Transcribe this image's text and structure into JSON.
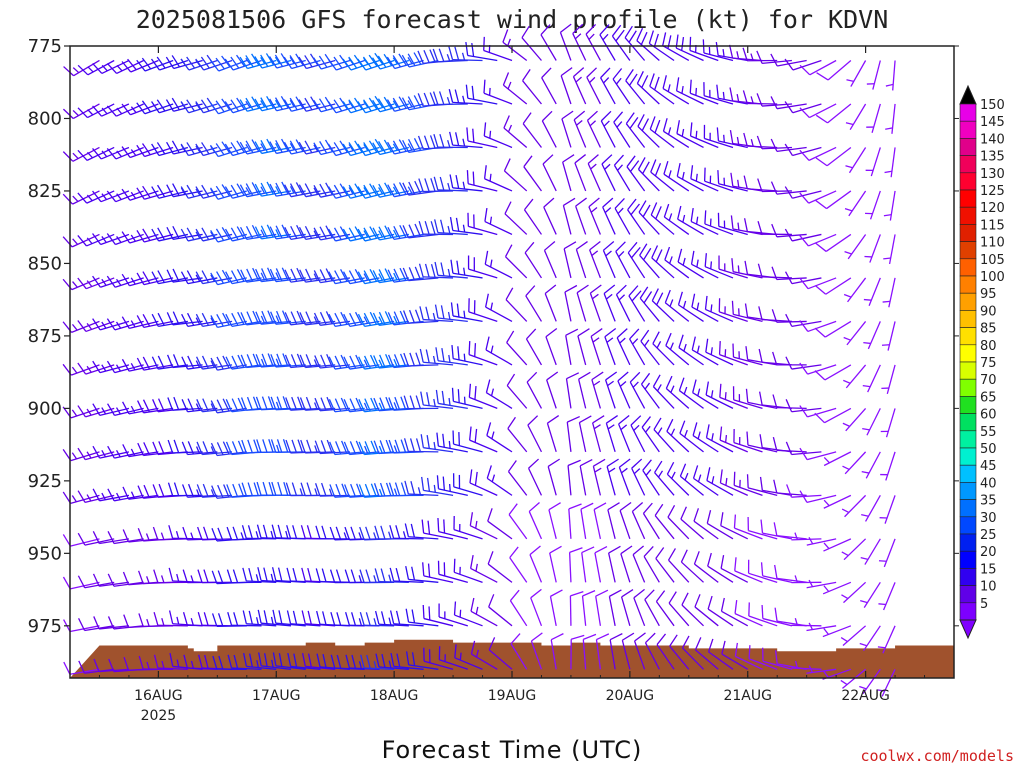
{
  "chart_data": {
    "type": "wind-profile",
    "title": "2025081506 GFS forecast wind profile (kt) for KDVN",
    "xlabel": "Forecast Time (UTC)",
    "ylabel": "",
    "credit": "coolwx.com/models",
    "y_axis": {
      "range": [
        775,
        993
      ],
      "ticks": [
        775,
        800,
        825,
        850,
        875,
        900,
        925,
        950,
        975
      ],
      "inverted": true
    },
    "x_axis": {
      "range": [
        "2025-08-15T06:00Z",
        "2025-08-22T18:00Z"
      ],
      "ticks": [
        {
          "date": "2025-08-16T00:00Z",
          "label": "16AUG",
          "sublabel": "2025"
        },
        {
          "date": "2025-08-17T00:00Z",
          "label": "17AUG",
          "sublabel": ""
        },
        {
          "date": "2025-08-18T00:00Z",
          "label": "18AUG",
          "sublabel": ""
        },
        {
          "date": "2025-08-19T00:00Z",
          "label": "19AUG",
          "sublabel": ""
        },
        {
          "date": "2025-08-20T00:00Z",
          "label": "20AUG",
          "sublabel": ""
        },
        {
          "date": "2025-08-21T00:00Z",
          "label": "21AUG",
          "sublabel": ""
        },
        {
          "date": "2025-08-22T00:00Z",
          "label": "22AUG",
          "sublabel": ""
        }
      ]
    },
    "levels": [
      780,
      795,
      810,
      825,
      840,
      855,
      870,
      885,
      900,
      915,
      930,
      945,
      960,
      975,
      990
    ],
    "barb_days": [
      {
        "day": 0.0,
        "dir": 250,
        "spd": 12
      },
      {
        "day": 0.125,
        "dir": 252,
        "spd": 13
      },
      {
        "day": 0.25,
        "dir": 255,
        "spd": 14
      },
      {
        "day": 0.375,
        "dir": 255,
        "spd": 14
      },
      {
        "day": 0.5,
        "dir": 258,
        "spd": 15
      },
      {
        "day": 0.625,
        "dir": 260,
        "spd": 17
      },
      {
        "day": 0.75,
        "dir": 262,
        "spd": 18
      },
      {
        "day": 0.875,
        "dir": 265,
        "spd": 20
      },
      {
        "day": 1.0,
        "dir": 262,
        "spd": 22
      },
      {
        "day": 1.125,
        "dir": 262,
        "spd": 24
      },
      {
        "day": 1.25,
        "dir": 260,
        "spd": 27
      },
      {
        "day": 1.375,
        "dir": 262,
        "spd": 29
      },
      {
        "day": 1.5,
        "dir": 265,
        "spd": 30
      },
      {
        "day": 1.625,
        "dir": 266,
        "spd": 31
      },
      {
        "day": 1.75,
        "dir": 266,
        "spd": 29
      },
      {
        "day": 1.875,
        "dir": 265,
        "spd": 26
      },
      {
        "day": 2.0,
        "dir": 265,
        "spd": 24
      },
      {
        "day": 2.125,
        "dir": 264,
        "spd": 26
      },
      {
        "day": 2.25,
        "dir": 262,
        "spd": 29
      },
      {
        "day": 2.375,
        "dir": 262,
        "spd": 31
      },
      {
        "day": 2.5,
        "dir": 262,
        "spd": 33
      },
      {
        "day": 2.625,
        "dir": 264,
        "spd": 32
      },
      {
        "day": 2.75,
        "dir": 265,
        "spd": 29
      },
      {
        "day": 2.875,
        "dir": 268,
        "spd": 26
      },
      {
        "day": 3.0,
        "dir": 275,
        "spd": 25
      },
      {
        "day": 3.125,
        "dir": 278,
        "spd": 23
      },
      {
        "day": 3.25,
        "dir": 282,
        "spd": 21
      },
      {
        "day": 3.375,
        "dir": 290,
        "spd": 17
      },
      {
        "day": 3.5,
        "dir": 300,
        "spd": 14
      },
      {
        "day": 3.625,
        "dir": 318,
        "spd": 11
      },
      {
        "day": 3.75,
        "dir": 330,
        "spd": 10
      },
      {
        "day": 3.875,
        "dir": 340,
        "spd": 10
      },
      {
        "day": 4.0,
        "dir": 350,
        "spd": 10
      },
      {
        "day": 4.125,
        "dir": 345,
        "spd": 11
      },
      {
        "day": 4.25,
        "dir": 342,
        "spd": 12
      },
      {
        "day": 4.375,
        "dir": 340,
        "spd": 14
      },
      {
        "day": 4.5,
        "dir": 335,
        "spd": 15
      },
      {
        "day": 4.625,
        "dir": 330,
        "spd": 16
      },
      {
        "day": 4.75,
        "dir": 322,
        "spd": 16
      },
      {
        "day": 4.875,
        "dir": 315,
        "spd": 16
      },
      {
        "day": 5.0,
        "dir": 310,
        "spd": 15
      },
      {
        "day": 5.125,
        "dir": 305,
        "spd": 15
      },
      {
        "day": 5.25,
        "dir": 300,
        "spd": 14
      },
      {
        "day": 5.375,
        "dir": 295,
        "spd": 14
      },
      {
        "day": 5.5,
        "dir": 290,
        "spd": 13
      },
      {
        "day": 5.625,
        "dir": 285,
        "spd": 12
      },
      {
        "day": 5.75,
        "dir": 280,
        "spd": 11
      },
      {
        "day": 5.875,
        "dir": 275,
        "spd": 10
      },
      {
        "day": 6.0,
        "dir": 270,
        "spd": 10
      },
      {
        "day": 6.125,
        "dir": 262,
        "spd": 9
      },
      {
        "day": 6.25,
        "dir": 252,
        "spd": 8
      },
      {
        "day": 6.375,
        "dir": 240,
        "spd": 7
      },
      {
        "day": 6.5,
        "dir": 220,
        "spd": 6
      },
      {
        "day": 6.625,
        "dir": 205,
        "spd": 6
      },
      {
        "day": 6.75,
        "dir": 195,
        "spd": 6
      }
    ],
    "ground": {
      "color": "#a0522d",
      "surface_hpa": [
        {
          "day": 0.0,
          "p": 988
        },
        {
          "day": 0.7,
          "p": 988
        },
        {
          "day": 0.75,
          "p": 989
        },
        {
          "day": 0.8,
          "p": 990
        },
        {
          "day": 1.0,
          "p": 988
        },
        {
          "day": 1.75,
          "p": 987
        },
        {
          "day": 2.0,
          "p": 988
        },
        {
          "day": 2.25,
          "p": 987
        },
        {
          "day": 2.5,
          "p": 986
        },
        {
          "day": 3.0,
          "p": 987
        },
        {
          "day": 3.5,
          "p": 987
        },
        {
          "day": 3.75,
          "p": 988
        },
        {
          "day": 4.0,
          "p": 987
        },
        {
          "day": 4.25,
          "p": 988
        },
        {
          "day": 5.0,
          "p": 989
        },
        {
          "day": 5.75,
          "p": 990
        },
        {
          "day": 6.25,
          "p": 989
        },
        {
          "day": 6.75,
          "p": 988
        },
        {
          "day": 7.5,
          "p": 988
        }
      ]
    },
    "colorbar": {
      "ticks": [
        150,
        145,
        140,
        135,
        130,
        125,
        120,
        115,
        110,
        105,
        100,
        95,
        90,
        85,
        80,
        75,
        70,
        65,
        60,
        55,
        50,
        45,
        40,
        35,
        30,
        25,
        20,
        15,
        10,
        5
      ],
      "colors": [
        "#e800e8",
        "#f000c0",
        "#e0008a",
        "#f0005a",
        "#ff0030",
        "#ff0000",
        "#f01000",
        "#e02000",
        "#e04000",
        "#ff6000",
        "#ff8000",
        "#ffa000",
        "#ffc000",
        "#ffe000",
        "#ffff00",
        "#d8ff00",
        "#80ff00",
        "#20e020",
        "#00e060",
        "#00f0a0",
        "#00f0d0",
        "#00c0ff",
        "#0098ff",
        "#0070ff",
        "#0048ff",
        "#0020f0",
        "#0000ff",
        "#3000f0",
        "#6000e8",
        "#7d00ff"
      ],
      "top_arrow_color": "#000000",
      "bottom_arrow_color": "#8000ff"
    }
  }
}
